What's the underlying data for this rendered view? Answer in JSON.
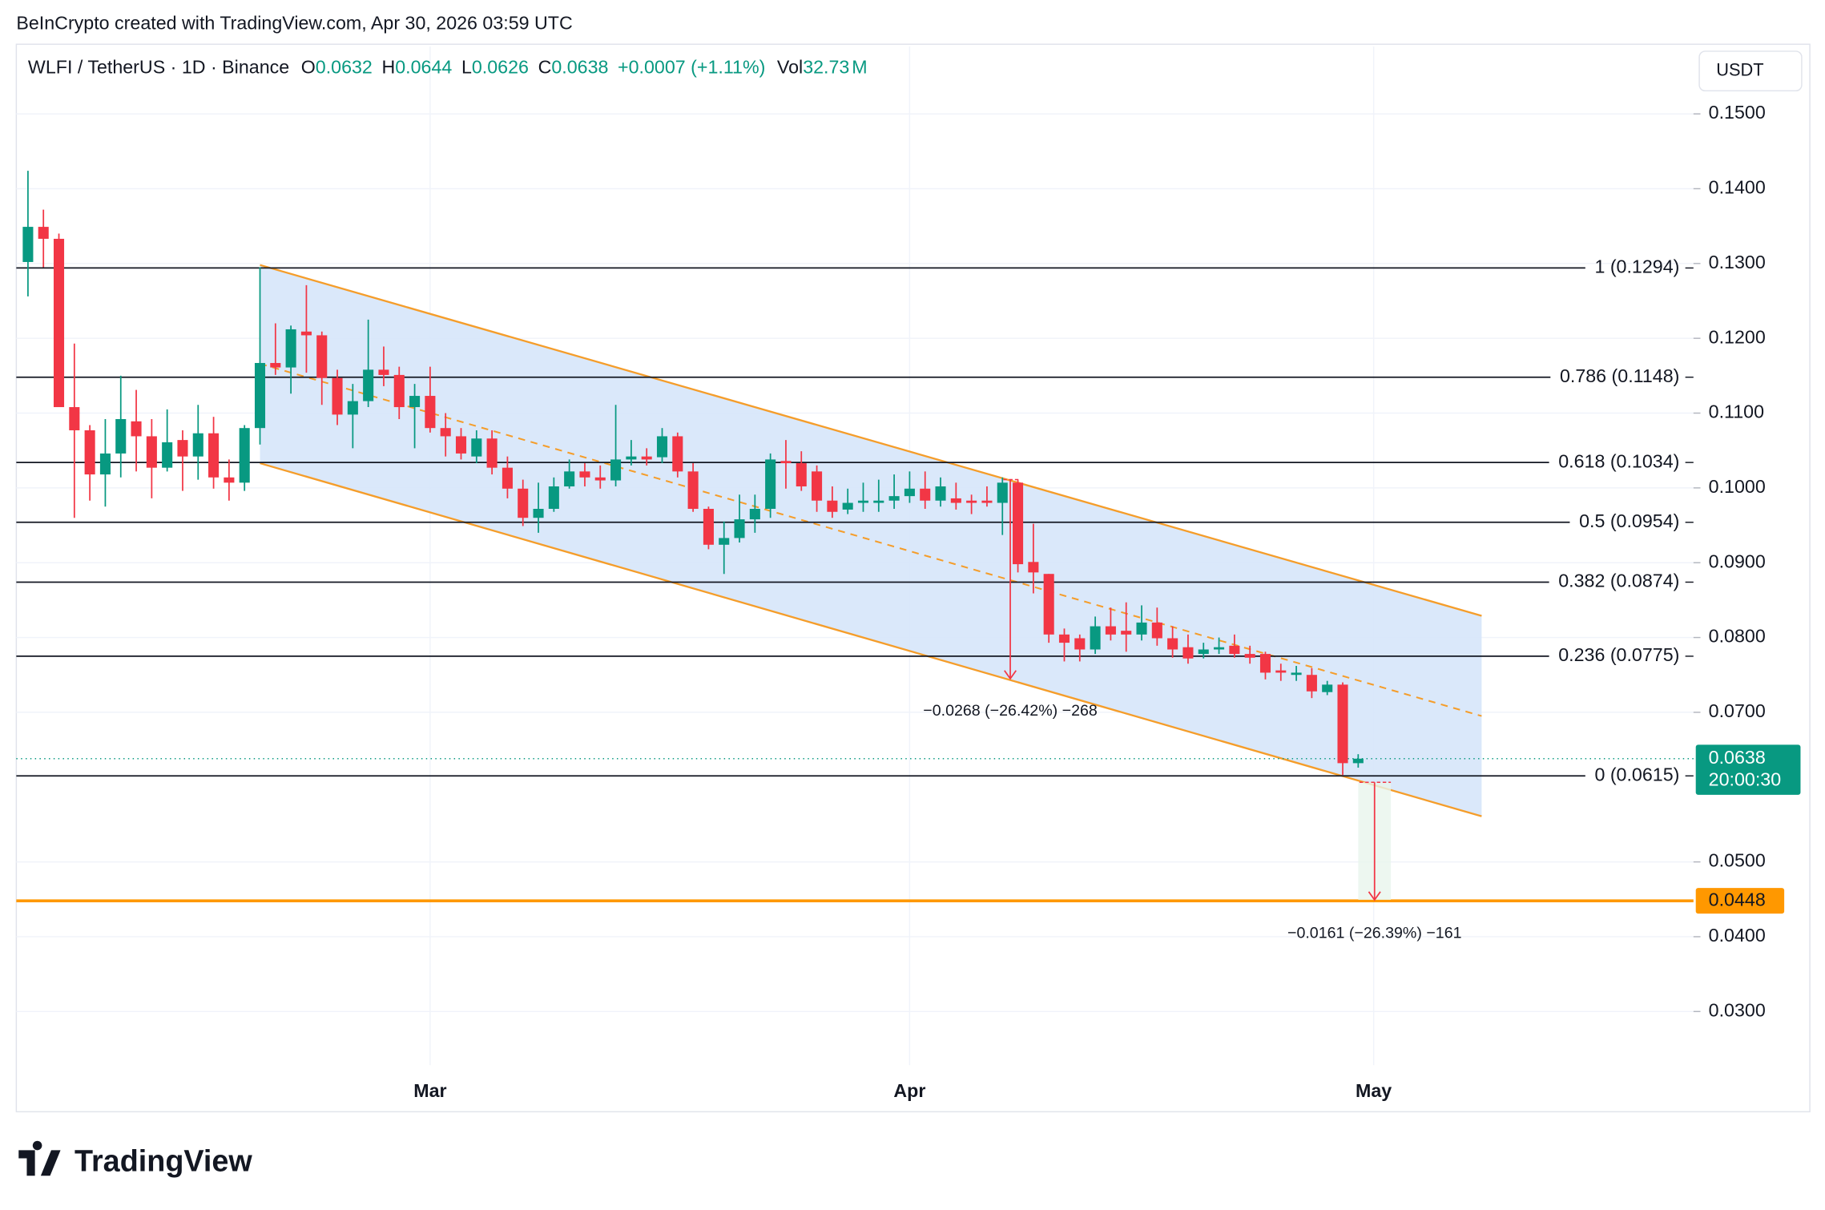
{
  "chart_data": {
    "type": "candlestick",
    "header": "BeInCrypto created with TradingView.com, Apr 30, 2026 03:59 UTC",
    "symbol": "WLFI / TetherUS · 1D · Binance",
    "legend_fields": [
      {
        "key": "O",
        "value": 0.0632
      },
      {
        "key": "H",
        "value": 0.0644
      },
      {
        "key": "L",
        "value": 0.0626
      },
      {
        "key": "C",
        "value": 0.0638
      }
    ],
    "change": "+0.0007 (+1.11%)",
    "volume": {
      "key": "Vol",
      "value": 32.73,
      "unit": "M"
    },
    "currency": "USDT",
    "x_axis_labels": [
      "Mar",
      "Apr",
      "May"
    ],
    "up_color": "#089981",
    "down_color": "#f23645",
    "open": [
      0.1302,
      0.1349,
      0.1333,
      0.1108,
      0.1077,
      0.1018,
      0.1046,
      0.1089,
      0.1069,
      0.1027,
      0.1064,
      0.1042,
      0.1073,
      0.1014,
      0.1007,
      0.108,
      0.1167,
      0.1161,
      0.1209,
      0.1204,
      0.1147,
      0.1098,
      0.1116,
      0.1158,
      0.1151,
      0.1108,
      0.1123,
      0.108,
      0.1069,
      0.1042,
      0.1066,
      0.1027,
      0.0999,
      0.096,
      0.0972,
      0.1002,
      0.1022,
      0.1014,
      0.101,
      0.1038,
      0.1042,
      0.1041,
      0.1069,
      0.1022,
      0.0972,
      0.0924,
      0.0933,
      0.0958,
      0.0972,
      0.1036,
      0.1033,
      0.1022,
      0.0983,
      0.0971,
      0.098,
      0.098,
      0.0983,
      0.0989,
      0.0999,
      0.0983,
      0.0986,
      0.0983,
      0.0983,
      0.098,
      0.1007,
      0.0901,
      0.0885,
      0.0804,
      0.0799,
      0.0784,
      0.0815,
      0.0809,
      0.0804,
      0.082,
      0.0799,
      0.0787,
      0.0778,
      0.0784,
      0.0789,
      0.0778,
      0.0778,
      0.0756,
      0.075,
      0.075,
      0.0727,
      0.0737,
      0.0632
    ],
    "high": [
      0.1424,
      0.1372,
      0.134,
      0.1193,
      0.1084,
      0.1092,
      0.115,
      0.1131,
      0.1092,
      0.1105,
      0.1077,
      0.1111,
      0.1095,
      0.1038,
      0.1084,
      0.1295,
      0.122,
      0.1217,
      0.1271,
      0.1209,
      0.1158,
      0.1139,
      0.1225,
      0.1189,
      0.1162,
      0.1139,
      0.1162,
      0.11,
      0.108,
      0.1077,
      0.1077,
      0.1042,
      0.1011,
      0.1007,
      0.1014,
      0.1038,
      0.1033,
      0.103,
      0.1111,
      0.1064,
      0.1053,
      0.108,
      0.1074,
      0.1033,
      0.0975,
      0.0955,
      0.0991,
      0.0991,
      0.1046,
      0.1064,
      0.1049,
      0.103,
      0.1002,
      0.0999,
      0.1007,
      0.1011,
      0.1018,
      0.1022,
      0.1022,
      0.1014,
      0.1007,
      0.0991,
      0.1002,
      0.1014,
      0.1011,
      0.0952,
      0.0885,
      0.0812,
      0.0804,
      0.0828,
      0.084,
      0.0847,
      0.0843,
      0.084,
      0.0815,
      0.0804,
      0.0793,
      0.08,
      0.0804,
      0.0789,
      0.0781,
      0.0765,
      0.0762,
      0.0759,
      0.0742,
      0.074,
      0.0644
    ],
    "low": [
      0.1256,
      0.1295,
      0.1108,
      0.096,
      0.0983,
      0.0975,
      0.1014,
      0.1022,
      0.0986,
      0.1022,
      0.0996,
      0.1011,
      0.0999,
      0.0983,
      0.0996,
      0.1058,
      0.1151,
      0.1126,
      0.1154,
      0.1111,
      0.1084,
      0.1053,
      0.1108,
      0.1136,
      0.1092,
      0.1053,
      0.1074,
      0.1042,
      0.1038,
      0.1033,
      0.1018,
      0.0986,
      0.0949,
      0.094,
      0.0968,
      0.0999,
      0.1002,
      0.0999,
      0.1002,
      0.103,
      0.103,
      0.1033,
      0.1014,
      0.0968,
      0.0918,
      0.0885,
      0.0927,
      0.094,
      0.096,
      0.0999,
      0.0996,
      0.0968,
      0.096,
      0.0965,
      0.0968,
      0.0968,
      0.0972,
      0.098,
      0.0972,
      0.0975,
      0.0971,
      0.0965,
      0.0975,
      0.0937,
      0.0887,
      0.0859,
      0.0793,
      0.0768,
      0.0768,
      0.0778,
      0.0796,
      0.0781,
      0.0796,
      0.0789,
      0.0773,
      0.0765,
      0.0772,
      0.0778,
      0.0773,
      0.0765,
      0.0744,
      0.0742,
      0.0742,
      0.0719,
      0.0723,
      0.0616,
      0.0626
    ],
    "close": [
      0.1349,
      0.1333,
      0.1108,
      0.1077,
      0.1018,
      0.1046,
      0.1092,
      0.1069,
      0.1027,
      0.1061,
      0.1042,
      0.1073,
      0.1014,
      0.1007,
      0.108,
      0.1167,
      0.1161,
      0.1212,
      0.1204,
      0.1147,
      0.1098,
      0.1116,
      0.1158,
      0.1151,
      0.1108,
      0.1123,
      0.108,
      0.1069,
      0.1046,
      0.1066,
      0.1027,
      0.0999,
      0.096,
      0.0972,
      0.1002,
      0.1022,
      0.1014,
      0.101,
      0.1038,
      0.1042,
      0.1038,
      0.1069,
      0.1022,
      0.0972,
      0.0924,
      0.0933,
      0.0958,
      0.0972,
      0.1038,
      0.1033,
      0.1002,
      0.0983,
      0.0968,
      0.098,
      0.0983,
      0.0983,
      0.0989,
      0.0999,
      0.0983,
      0.1002,
      0.098,
      0.098,
      0.098,
      0.1007,
      0.0898,
      0.0887,
      0.0804,
      0.0793,
      0.0784,
      0.0815,
      0.0804,
      0.0804,
      0.082,
      0.0799,
      0.0784,
      0.0772,
      0.0784,
      0.0787,
      0.0778,
      0.0773,
      0.0753,
      0.0753,
      0.0753,
      0.0728,
      0.0737,
      0.0632,
      0.0638
    ],
    "ylim": [
      0.0166,
      0.159
    ],
    "yticks": [
      {
        "value": 0.15,
        "label": "0.1500"
      },
      {
        "value": 0.14,
        "label": "0.1400"
      },
      {
        "value": 0.13,
        "label": "0.1300"
      },
      {
        "value": 0.12,
        "label": "0.1200"
      },
      {
        "value": 0.11,
        "label": "0.1100"
      },
      {
        "value": 0.1,
        "label": "0.1000"
      },
      {
        "value": 0.09,
        "label": "0.0900"
      },
      {
        "value": 0.08,
        "label": "0.0800"
      },
      {
        "value": 0.07,
        "label": "0.0700"
      },
      {
        "value": 0.05,
        "label": "0.0500"
      },
      {
        "value": 0.04,
        "label": "0.0400"
      },
      {
        "value": 0.03,
        "label": "0.0300"
      }
    ],
    "grid": true,
    "fib_levels": [
      {
        "value": 0.1294,
        "label": "1 (0.1294)"
      },
      {
        "value": 0.1148,
        "label": "0.786 (0.1148)"
      },
      {
        "value": 0.1034,
        "label": "0.618 (0.1034)"
      },
      {
        "value": 0.0954,
        "label": "0.5 (0.0954)"
      },
      {
        "value": 0.0874,
        "label": "0.382 (0.0874)"
      },
      {
        "value": 0.0775,
        "label": "0.236 (0.0775)"
      },
      {
        "value": 0.0615,
        "label": "0 (0.0615)"
      }
    ],
    "channel": {
      "upper": [
        0.1298,
        0.0829
      ],
      "lower": [
        0.1033,
        0.0561
      ],
      "mid": [
        0.1166,
        0.0695
      ],
      "color": "#f59d2a"
    },
    "target_level": 0.0448,
    "last_price": 0.0638,
    "countdown": "20:00:30",
    "measures": [
      "−0.0268 (−26.42%) −268",
      "−0.0161 (−26.39%) −161"
    ],
    "brand": "TradingView"
  }
}
